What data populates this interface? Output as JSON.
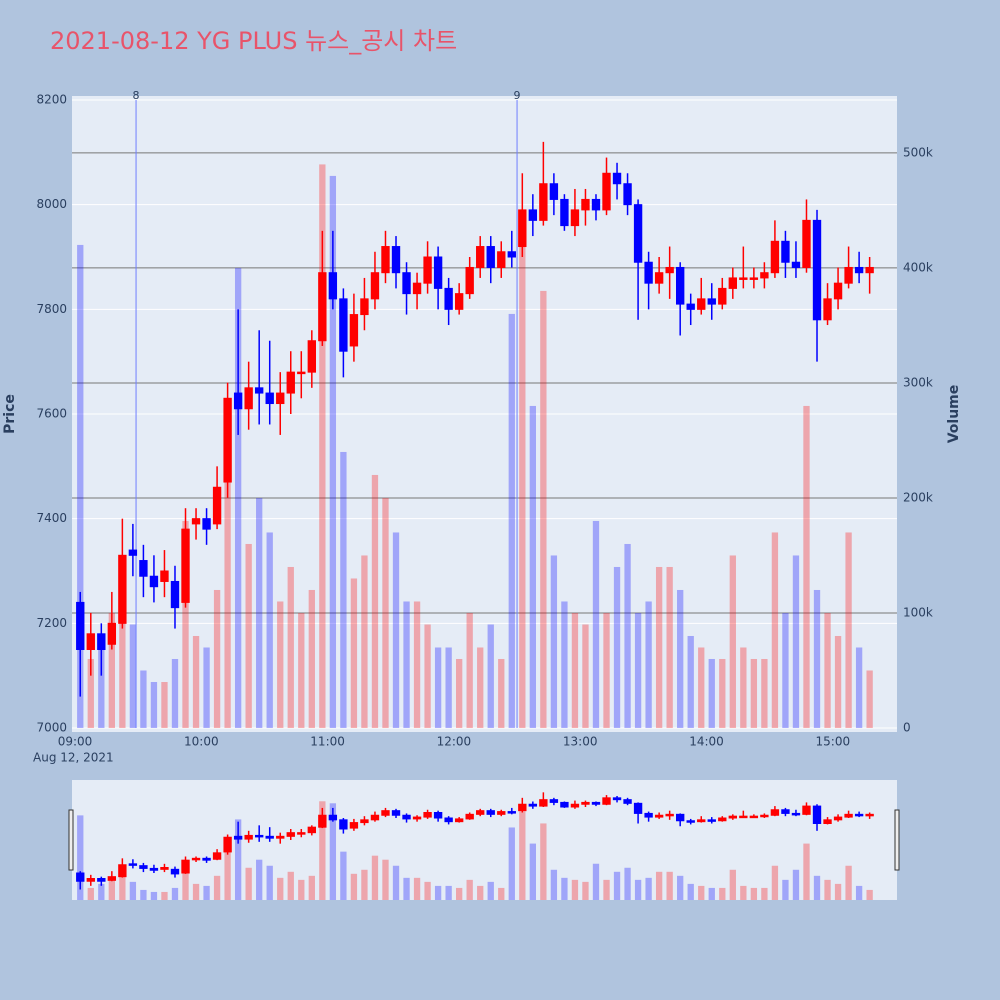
{
  "chart_data": {
    "type": "candlestick",
    "title": "2021-08-12 YG PLUS 뉴스_공시 차트",
    "y_label": "Price",
    "y2_label": "Volume",
    "x_date_label": "Aug 12, 2021",
    "x": [
      "09:00",
      "09:05",
      "09:10",
      "09:15",
      "09:20",
      "09:25",
      "09:30",
      "09:35",
      "09:40",
      "09:45",
      "09:50",
      "09:55",
      "10:00",
      "10:05",
      "10:10",
      "10:15",
      "10:20",
      "10:25",
      "10:30",
      "10:35",
      "10:40",
      "10:45",
      "10:50",
      "10:55",
      "11:00",
      "11:05",
      "11:10",
      "11:15",
      "11:20",
      "11:25",
      "11:30",
      "11:35",
      "11:40",
      "11:45",
      "11:50",
      "11:55",
      "12:00",
      "12:05",
      "12:10",
      "12:15",
      "12:20",
      "12:25",
      "12:30",
      "12:35",
      "12:40",
      "12:45",
      "12:50",
      "12:55",
      "13:00",
      "13:05",
      "13:10",
      "13:15",
      "13:20",
      "13:25",
      "13:30",
      "13:35",
      "13:40",
      "13:45",
      "13:50",
      "13:55",
      "14:00",
      "14:05",
      "14:10",
      "14:15",
      "14:20",
      "14:25",
      "14:30",
      "14:35",
      "14:40",
      "14:45",
      "14:50",
      "14:55",
      "15:00",
      "15:05",
      "15:10",
      "15:15"
    ],
    "open": [
      7240,
      7150,
      7180,
      7160,
      7200,
      7340,
      7320,
      7290,
      7280,
      7280,
      7240,
      7390,
      7400,
      7390,
      7470,
      7640,
      7610,
      7650,
      7640,
      7620,
      7640,
      7680,
      7680,
      7740,
      7870,
      7820,
      7730,
      7790,
      7820,
      7870,
      7920,
      7870,
      7830,
      7850,
      7900,
      7840,
      7800,
      7830,
      7880,
      7920,
      7880,
      7910,
      7920,
      7990,
      7970,
      8040,
      8010,
      7960,
      7990,
      8010,
      7990,
      8060,
      8040,
      8000,
      7890,
      7850,
      7870,
      7880,
      7810,
      7800,
      7820,
      7810,
      7840,
      7860,
      7860,
      7860,
      7870,
      7930,
      7890,
      7880,
      7970,
      7780,
      7820,
      7850,
      7880,
      7870
    ],
    "high": [
      7260,
      7220,
      7200,
      7260,
      7400,
      7390,
      7350,
      7330,
      7340,
      7310,
      7420,
      7420,
      7420,
      7500,
      7660,
      7800,
      7700,
      7760,
      7740,
      7680,
      7720,
      7720,
      7760,
      7950,
      7950,
      7840,
      7830,
      7860,
      7910,
      7950,
      7940,
      7890,
      7870,
      7930,
      7920,
      7860,
      7850,
      7900,
      7940,
      7940,
      7930,
      7950,
      8060,
      8020,
      8120,
      8060,
      8020,
      8030,
      8030,
      8020,
      8090,
      8080,
      8060,
      8010,
      7910,
      7900,
      7920,
      7890,
      7830,
      7860,
      7850,
      7860,
      7880,
      7920,
      7880,
      7890,
      7970,
      7950,
      7930,
      8010,
      7990,
      7850,
      7880,
      7920,
      7910,
      7900
    ],
    "low": [
      7060,
      7100,
      7100,
      7150,
      7190,
      7290,
      7250,
      7240,
      7250,
      7190,
      7230,
      7360,
      7350,
      7380,
      7440,
      7560,
      7570,
      7580,
      7580,
      7560,
      7600,
      7630,
      7650,
      7730,
      7800,
      7670,
      7700,
      7760,
      7800,
      7850,
      7840,
      7790,
      7800,
      7830,
      7800,
      7770,
      7790,
      7820,
      7860,
      7850,
      7860,
      7880,
      7900,
      7940,
      7960,
      7980,
      7950,
      7940,
      7960,
      7970,
      7980,
      8010,
      7980,
      7780,
      7800,
      7830,
      7820,
      7750,
      7770,
      7790,
      7780,
      7800,
      7820,
      7840,
      7840,
      7840,
      7860,
      7860,
      7860,
      7870,
      7700,
      7770,
      7800,
      7840,
      7850,
      7830
    ],
    "close": [
      7150,
      7180,
      7150,
      7200,
      7330,
      7330,
      7290,
      7270,
      7300,
      7230,
      7380,
      7400,
      7380,
      7460,
      7630,
      7610,
      7650,
      7640,
      7620,
      7640,
      7680,
      7680,
      7740,
      7870,
      7820,
      7720,
      7790,
      7820,
      7870,
      7920,
      7870,
      7830,
      7850,
      7900,
      7840,
      7800,
      7830,
      7880,
      7920,
      7880,
      7910,
      7900,
      7990,
      7970,
      8040,
      8010,
      7960,
      7990,
      8010,
      7990,
      8060,
      8040,
      8000,
      7890,
      7850,
      7870,
      7880,
      7810,
      7800,
      7820,
      7810,
      7840,
      7860,
      7860,
      7860,
      7870,
      7930,
      7890,
      7880,
      7970,
      7780,
      7820,
      7850,
      7880,
      7870,
      7880
    ],
    "volume": [
      420000,
      60000,
      80000,
      100000,
      150000,
      90000,
      50000,
      40000,
      40000,
      60000,
      180000,
      80000,
      70000,
      120000,
      240000,
      400000,
      160000,
      200000,
      170000,
      110000,
      140000,
      100000,
      120000,
      490000,
      480000,
      240000,
      130000,
      150000,
      220000,
      200000,
      170000,
      110000,
      110000,
      90000,
      70000,
      70000,
      60000,
      100000,
      70000,
      90000,
      60000,
      360000,
      440000,
      280000,
      380000,
      150000,
      110000,
      100000,
      90000,
      180000,
      100000,
      140000,
      160000,
      100000,
      110000,
      140000,
      140000,
      120000,
      80000,
      70000,
      60000,
      60000,
      150000,
      70000,
      60000,
      60000,
      170000,
      100000,
      150000,
      280000,
      120000,
      100000,
      80000,
      170000,
      70000,
      50000
    ],
    "increasing_color": "#ff0000",
    "decreasing_color": "#0000ff",
    "annotations": [
      {
        "x": "09:29",
        "text": "8"
      },
      {
        "x": "12:30",
        "text": "9"
      }
    ],
    "xticks": [
      "09:00",
      "10:00",
      "11:00",
      "12:00",
      "13:00",
      "14:00",
      "15:00"
    ],
    "ylim": [
      7000,
      8200
    ],
    "yticks": [
      7000,
      7200,
      7400,
      7600,
      7800,
      8000,
      8200
    ],
    "y2lim": [
      0,
      546000
    ],
    "y2ticks": [
      0,
      {
        "value": 100000,
        "label": "100k"
      },
      {
        "value": 200000,
        "label": "200k"
      },
      {
        "value": 300000,
        "label": "300k"
      },
      {
        "value": 400000,
        "label": "400k"
      },
      {
        "value": 500000,
        "label": "500k"
      }
    ],
    "grid": true,
    "rangeslider": true
  }
}
